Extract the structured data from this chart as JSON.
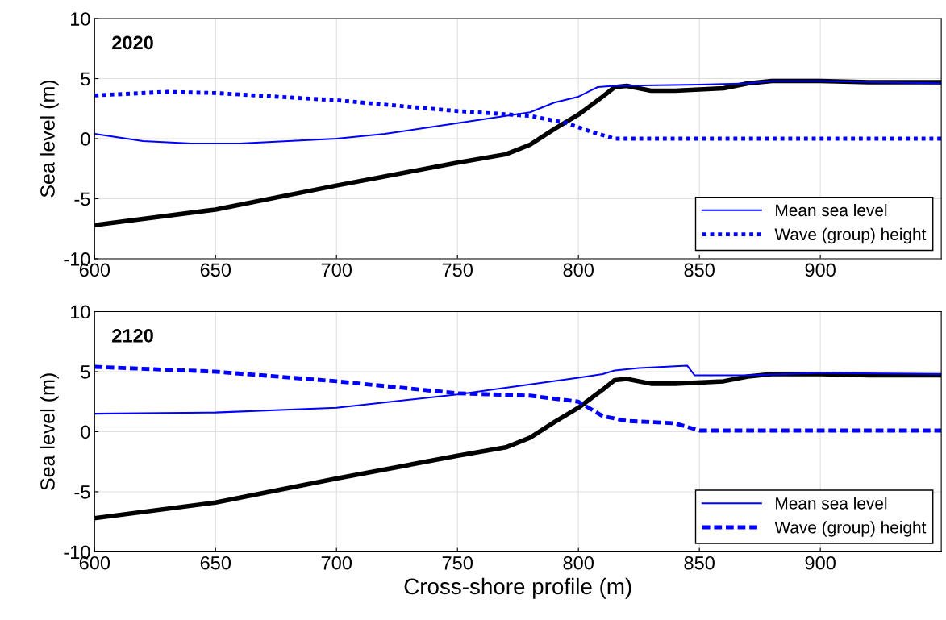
{
  "chart_data": [
    {
      "type": "line",
      "annotations": [
        "2020"
      ],
      "ylabel": "Sea level (m)",
      "xlim": [
        600,
        950
      ],
      "xticks": [
        600,
        650,
        700,
        750,
        800,
        850,
        900
      ],
      "ylim": [
        -10,
        10
      ],
      "yticks": [
        -10,
        -5,
        0,
        5,
        10
      ],
      "grid": true,
      "legend": "bottom right",
      "series": [
        {
          "color": "#000000",
          "line_style": "solid",
          "x": [
            600,
            650,
            700,
            750,
            770,
            780,
            790,
            800,
            810,
            815,
            820,
            830,
            840,
            860,
            870,
            880,
            900,
            920,
            950
          ],
          "values": [
            -7.2,
            -5.9,
            -3.9,
            -2.0,
            -1.3,
            -0.5,
            0.8,
            2.0,
            3.5,
            4.3,
            4.4,
            4.0,
            4.0,
            4.2,
            4.6,
            4.8,
            4.8,
            4.7,
            4.7
          ]
        },
        {
          "name": "Mean sea level",
          "color": "#0000ff",
          "line_style": "solid",
          "x": [
            600,
            620,
            640,
            660,
            700,
            720,
            750,
            780,
            790,
            800,
            805,
            808,
            815,
            850,
            870,
            880,
            900,
            950
          ],
          "values": [
            0.4,
            -0.2,
            -0.4,
            -0.4,
            0.0,
            0.4,
            1.3,
            2.2,
            3.0,
            3.5,
            4.0,
            4.3,
            4.4,
            4.5,
            4.6,
            4.8,
            4.8,
            4.6
          ]
        },
        {
          "name": "Wave (group) height",
          "color": "#0000ff",
          "line_style": "dotted",
          "x": [
            600,
            630,
            650,
            700,
            750,
            780,
            795,
            805,
            815,
            950
          ],
          "values": [
            3.6,
            3.9,
            3.8,
            3.2,
            2.3,
            1.9,
            1.3,
            0.6,
            0.0,
            0.0
          ]
        }
      ]
    },
    {
      "type": "line",
      "annotations": [
        "2120"
      ],
      "xlabel": "Cross-shore profile (m)",
      "ylabel": "Sea level (m)",
      "xlim": [
        600,
        950
      ],
      "xticks": [
        600,
        650,
        700,
        750,
        800,
        850,
        900
      ],
      "ylim": [
        -10,
        10
      ],
      "yticks": [
        -10,
        -5,
        0,
        5,
        10
      ],
      "grid": true,
      "legend": "bottom right",
      "series": [
        {
          "color": "#000000",
          "line_style": "solid",
          "x": [
            600,
            650,
            700,
            750,
            770,
            780,
            790,
            800,
            810,
            815,
            820,
            830,
            840,
            860,
            870,
            880,
            900,
            920,
            950
          ],
          "values": [
            -7.2,
            -5.9,
            -3.9,
            -2.0,
            -1.3,
            -0.5,
            0.8,
            2.0,
            3.5,
            4.3,
            4.4,
            4.0,
            4.0,
            4.2,
            4.6,
            4.8,
            4.8,
            4.7,
            4.7
          ]
        },
        {
          "name": "Mean sea level",
          "color": "#0000ff",
          "line_style": "solid",
          "x": [
            600,
            650,
            700,
            750,
            800,
            810,
            815,
            825,
            845,
            848,
            870,
            900,
            950
          ],
          "values": [
            1.5,
            1.6,
            2.0,
            3.1,
            4.5,
            4.8,
            5.1,
            5.3,
            5.5,
            4.7,
            4.7,
            4.9,
            4.8
          ]
        },
        {
          "name": "Wave (group) height",
          "color": "#0000ff",
          "line_style": "dashed",
          "x": [
            600,
            650,
            700,
            750,
            780,
            800,
            810,
            820,
            840,
            850,
            950
          ],
          "values": [
            5.4,
            5.0,
            4.2,
            3.2,
            3.0,
            2.5,
            1.3,
            0.9,
            0.7,
            0.1,
            0.1
          ]
        }
      ]
    }
  ]
}
